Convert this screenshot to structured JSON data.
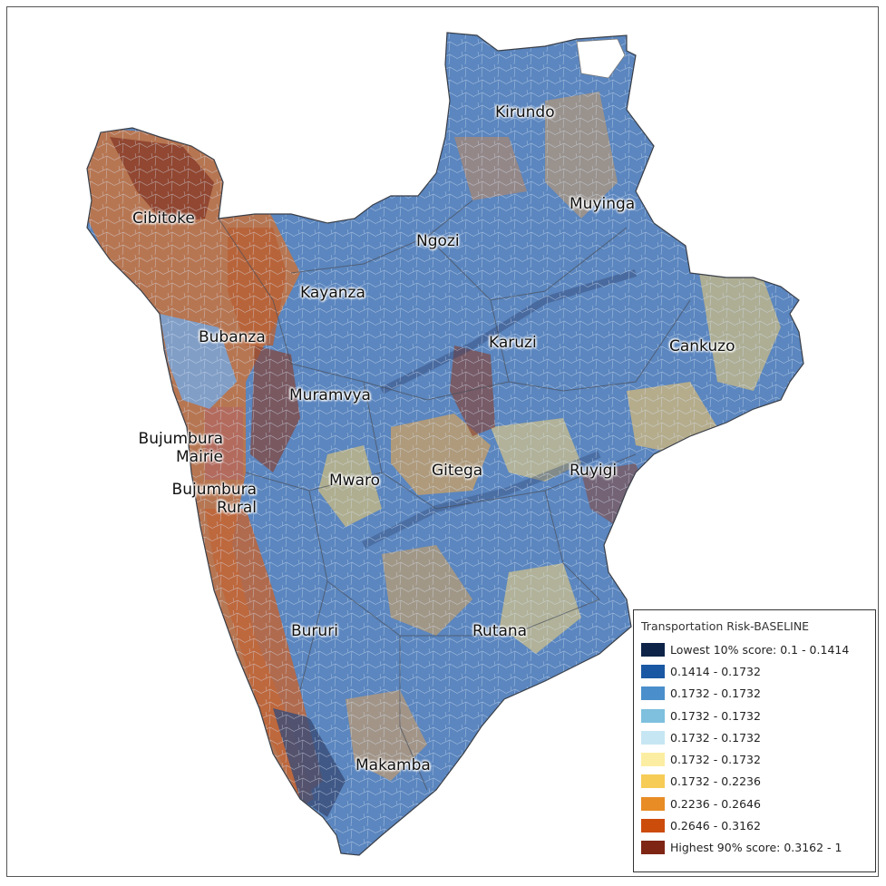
{
  "map": {
    "colors": {
      "base_blue": "#5b86bf",
      "yellow": "#f7d77a",
      "orange": "#e59a45",
      "brown": "#8b3f2c",
      "dark": "#22335a"
    },
    "province_labels": [
      {
        "key": "kirundo",
        "text": "Kirundo"
      },
      {
        "key": "muyinga",
        "text": "Muyinga"
      },
      {
        "key": "cibitoke",
        "text": "Cibitoke"
      },
      {
        "key": "ngozi",
        "text": "Ngozi"
      },
      {
        "key": "kayanza",
        "text": "Kayanza"
      },
      {
        "key": "bubanza",
        "text": "Bubanza"
      },
      {
        "key": "karuzi",
        "text": "Karuzi"
      },
      {
        "key": "cankuzo",
        "text": "Cankuzo"
      },
      {
        "key": "muramvya",
        "text": "Muramvya"
      },
      {
        "key": "bujumbura_mairie",
        "text": "Bujumbura\nMairie"
      },
      {
        "key": "bujumbura_rural",
        "text": "Bujumbura\nRural"
      },
      {
        "key": "mwaro",
        "text": "Mwaro"
      },
      {
        "key": "gitega",
        "text": "Gitega"
      },
      {
        "key": "ruyigi",
        "text": "Ruyigi"
      },
      {
        "key": "bururi",
        "text": "Bururi"
      },
      {
        "key": "rutana",
        "text": "Rutana"
      },
      {
        "key": "makamba",
        "text": "Makamba"
      }
    ]
  },
  "legend": {
    "title": "Transportation Risk-BASELINE",
    "items": [
      {
        "label": "Lowest 10% score: 0.1 - 0.1414",
        "color": "#0d2448"
      },
      {
        "label": "0.1414 - 0.1732",
        "color": "#1a58a3"
      },
      {
        "label": "0.1732 - 0.1732",
        "color": "#4a8fcb"
      },
      {
        "label": "0.1732 - 0.1732",
        "color": "#7ec0de"
      },
      {
        "label": "0.1732 - 0.1732",
        "color": "#c7e6f3"
      },
      {
        "label": "0.1732 - 0.1732",
        "color": "#fbeea2"
      },
      {
        "label": "0.1732 - 0.2236",
        "color": "#f6cc57"
      },
      {
        "label": "0.2236 - 0.2646",
        "color": "#e88c25"
      },
      {
        "label": "0.2646 - 0.3162",
        "color": "#cc4c0c"
      },
      {
        "label": "Highest 90% score: 0.3162 - 1",
        "color": "#7e2514"
      }
    ]
  }
}
